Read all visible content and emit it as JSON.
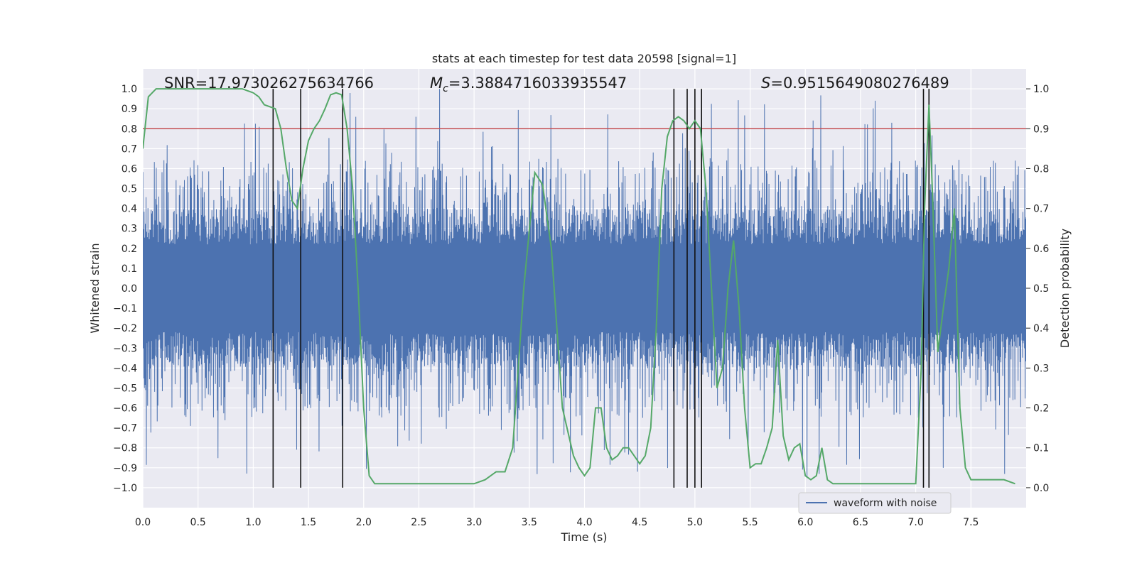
{
  "chart_data": {
    "type": "line",
    "title": "stats at each timestep for test data 20598 [signal=1]",
    "xlabel": "Time (s)",
    "ylabel_left": "Whitened strain",
    "ylabel_right": "Detection probability",
    "xlim": [
      0.0,
      8.0
    ],
    "ylim_left": [
      -1.1,
      1.1
    ],
    "ylim_right": [
      -0.05,
      1.05
    ],
    "x_ticks": [
      0.0,
      0.5,
      1.0,
      1.5,
      2.0,
      2.5,
      3.0,
      3.5,
      4.0,
      4.5,
      5.0,
      5.5,
      6.0,
      6.5,
      7.0,
      7.5
    ],
    "x_tick_labels": [
      "0.0",
      "0.5",
      "1.0",
      "1.5",
      "2.0",
      "2.5",
      "3.0",
      "3.5",
      "4.0",
      "4.5",
      "5.0",
      "5.5",
      "6.0",
      "6.5",
      "7.0",
      "7.5"
    ],
    "y_left_ticks": [
      -1.0,
      -0.9,
      -0.8,
      -0.7,
      -0.6,
      -0.5,
      -0.4,
      -0.3,
      -0.2,
      -0.1,
      0.0,
      0.1,
      0.2,
      0.3,
      0.4,
      0.5,
      0.6,
      0.7,
      0.8,
      0.9,
      1.0
    ],
    "y_left_tick_labels": [
      "−1.0",
      "−0.9",
      "−0.8",
      "−0.7",
      "−0.6",
      "−0.5",
      "−0.4",
      "−0.3",
      "−0.2",
      "−0.1",
      "0.0",
      "0.1",
      "0.2",
      "0.3",
      "0.4",
      "0.5",
      "0.6",
      "0.7",
      "0.8",
      "0.9",
      "1.0"
    ],
    "y_right_ticks": [
      0.0,
      0.1,
      0.2,
      0.3,
      0.4,
      0.5,
      0.6,
      0.7,
      0.8,
      0.9,
      1.0
    ],
    "y_right_tick_labels": [
      "0.0",
      "0.1",
      "0.2",
      "0.3",
      "0.4",
      "0.5",
      "0.6",
      "0.7",
      "0.8",
      "0.9",
      "1.0"
    ],
    "annotations": {
      "snr": "SNR=17.973026275634766",
      "mc_symbol": "M",
      "mc_sub": "c",
      "mc_value": "=3.3884716033935547",
      "s_symbol": "S",
      "s_value": "=0.9515649080276489"
    },
    "threshold": {
      "value": 0.9,
      "axis": "right",
      "color": "#c44e52"
    },
    "vertical_lines": [
      1.18,
      1.43,
      1.81,
      4.81,
      4.93,
      5.0,
      5.06,
      7.07,
      7.12
    ],
    "waveform": {
      "name": "waveform with noise",
      "color": "#4c72b0",
      "duration_s": 8.0,
      "band_low": -0.4,
      "band_high": 0.4,
      "peak_max": 1.0,
      "peak_min": -0.95
    },
    "probability": {
      "color": "#55a868",
      "x": [
        0.0,
        0.05,
        0.12,
        0.2,
        0.3,
        0.4,
        0.5,
        0.6,
        0.7,
        0.8,
        0.9,
        0.95,
        1.0,
        1.05,
        1.1,
        1.15,
        1.2,
        1.25,
        1.3,
        1.35,
        1.4,
        1.45,
        1.5,
        1.55,
        1.6,
        1.65,
        1.7,
        1.75,
        1.8,
        1.85,
        1.9,
        1.95,
        2.0,
        2.05,
        2.1,
        2.2,
        2.5,
        2.8,
        2.9,
        3.0,
        3.1,
        3.2,
        3.28,
        3.35,
        3.45,
        3.55,
        3.62,
        3.7,
        3.8,
        3.9,
        3.95,
        4.0,
        4.05,
        4.1,
        4.15,
        4.2,
        4.25,
        4.3,
        4.35,
        4.4,
        4.45,
        4.5,
        4.55,
        4.6,
        4.65,
        4.7,
        4.75,
        4.8,
        4.85,
        4.9,
        4.95,
        5.0,
        5.05,
        5.1,
        5.15,
        5.2,
        5.25,
        5.3,
        5.35,
        5.4,
        5.45,
        5.5,
        5.55,
        5.6,
        5.65,
        5.7,
        5.75,
        5.8,
        5.85,
        5.9,
        5.95,
        6.0,
        6.05,
        6.1,
        6.15,
        6.2,
        6.25,
        6.3,
        6.35,
        6.4,
        6.5,
        6.6,
        6.7,
        6.8,
        6.9,
        7.0,
        7.05,
        7.08,
        7.12,
        7.15,
        7.2,
        7.25,
        7.3,
        7.35,
        7.4,
        7.45,
        7.5,
        7.55,
        7.6,
        7.7,
        7.8,
        7.9
      ],
      "y": [
        0.85,
        0.98,
        1.0,
        1.0,
        1.0,
        1.0,
        1.0,
        1.0,
        1.0,
        1.0,
        1.0,
        0.995,
        0.99,
        0.98,
        0.96,
        0.955,
        0.95,
        0.9,
        0.8,
        0.72,
        0.7,
        0.8,
        0.87,
        0.9,
        0.92,
        0.95,
        0.985,
        0.99,
        0.985,
        0.9,
        0.75,
        0.5,
        0.2,
        0.03,
        0.01,
        0.01,
        0.01,
        0.01,
        0.01,
        0.01,
        0.02,
        0.04,
        0.04,
        0.1,
        0.5,
        0.79,
        0.76,
        0.6,
        0.2,
        0.08,
        0.05,
        0.03,
        0.05,
        0.2,
        0.2,
        0.1,
        0.07,
        0.08,
        0.1,
        0.1,
        0.08,
        0.06,
        0.08,
        0.15,
        0.4,
        0.75,
        0.88,
        0.92,
        0.93,
        0.92,
        0.9,
        0.92,
        0.9,
        0.75,
        0.5,
        0.25,
        0.3,
        0.5,
        0.62,
        0.45,
        0.2,
        0.05,
        0.06,
        0.06,
        0.1,
        0.15,
        0.37,
        0.13,
        0.07,
        0.1,
        0.11,
        0.03,
        0.02,
        0.03,
        0.1,
        0.02,
        0.01,
        0.01,
        0.01,
        0.01,
        0.01,
        0.01,
        0.01,
        0.01,
        0.01,
        0.01,
        0.3,
        0.7,
        0.96,
        0.75,
        0.34,
        0.45,
        0.55,
        0.7,
        0.2,
        0.05,
        0.02,
        0.02,
        0.02,
        0.02,
        0.02,
        0.01
      ]
    },
    "legend": {
      "label": "waveform with noise",
      "placement": "lower-right"
    }
  }
}
